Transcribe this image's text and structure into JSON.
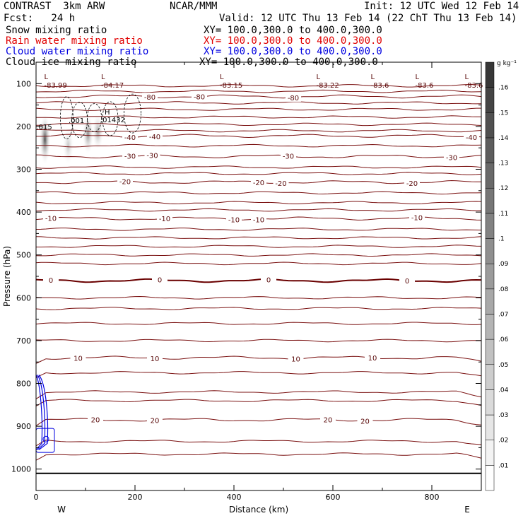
{
  "header": {
    "title": "CONTRAST  3km ARW",
    "org": "NCAR/MMM",
    "init": "Init: 12 UTC Wed 12 Feb 14",
    "fcst": "Fcst:   24 h",
    "valid": "Valid: 12 UTC Thu 13 Feb 14 (22 ChT Thu 13 Feb 14)",
    "fields": [
      {
        "name": "Snow mixing ratio",
        "xy": "XY= 100.0,300.0 to 400.0,300.0",
        "color": "#000000"
      },
      {
        "name": "Rain water mixing ratio",
        "xy": "XY= 100.0,300.0 to 400.0,300.0",
        "color": "#e00000"
      },
      {
        "name": "Cloud water mixing ratio",
        "xy": "XY= 100.0,300.0 to 400.0,300.0",
        "color": "#0000e0"
      },
      {
        "name": "Cloud ice mixing ratio",
        "xy": "XY= 100.0,300.0 to 400.0,300.0",
        "color": "#000000"
      }
    ]
  },
  "chart_data": {
    "type": "contour",
    "xlabel": "Distance (km)",
    "ylabel": "Pressure (hPa)",
    "xlim": [
      0,
      900
    ],
    "ylim": [
      1050,
      50
    ],
    "xticks": [
      0,
      200,
      400,
      600,
      800
    ],
    "yticks": [
      100,
      200,
      300,
      400,
      500,
      600,
      700,
      800,
      900,
      1000
    ],
    "x_ends": {
      "left": "W",
      "right": "E"
    },
    "temperature_contours": [
      {
        "label": "-80",
        "base_p": 130,
        "label_x": [
          230,
          330,
          520
        ]
      },
      {
        "label": "-40",
        "base_p": 222,
        "label_x": [
          190,
          240,
          880
        ]
      },
      {
        "label": "-30",
        "base_p": 270,
        "label_x": [
          190,
          235,
          510,
          840
        ]
      },
      {
        "label": "-20",
        "base_p": 330,
        "label_x": [
          180,
          450,
          495,
          760
        ]
      },
      {
        "label": "-10",
        "base_p": 415,
        "label_x": [
          30,
          260,
          400,
          450,
          770
        ]
      },
      {
        "label": "0",
        "base_p": 560,
        "label_x": [
          30,
          250,
          470,
          750
        ]
      },
      {
        "label": "10",
        "base_p": 740,
        "label_x": [
          85,
          240,
          525,
          680
        ]
      },
      {
        "label": "20",
        "base_p": 885,
        "label_x": [
          120,
          240,
          590,
          665
        ]
      }
    ],
    "low_markers": [
      {
        "x": 25,
        "value": "-83.99"
      },
      {
        "x": 140,
        "value": "-84.17"
      },
      {
        "x": 380,
        "value": "-83.15"
      },
      {
        "x": 575,
        "value": "-83.22"
      },
      {
        "x": 685,
        "value": "-83.6"
      },
      {
        "x": 775,
        "value": "-83.6"
      },
      {
        "x": 875,
        "value": "-83.6"
      }
    ],
    "high_marker": {
      "x": 130,
      "p": 195,
      "label": "H",
      "value": ".01432"
    },
    "ice_labels": [
      {
        "x": 15,
        "p": 207,
        "value": ".015"
      },
      {
        "x": 80,
        "p": 192,
        "value": ".001"
      }
    ],
    "snow_cells": [
      {
        "x": 18,
        "p_top": 170,
        "p_bot": 290,
        "intensity": 0.15
      },
      {
        "x": 65,
        "p_top": 200,
        "p_bot": 290,
        "intensity": 0.05
      },
      {
        "x": 105,
        "p_top": 170,
        "p_bot": 265,
        "intensity": 0.1
      },
      {
        "x": 125,
        "p_top": 170,
        "p_bot": 255,
        "intensity": 0.08
      }
    ],
    "colorbar": {
      "units": "g kg⁻¹",
      "levels": [
        ".01",
        ".02",
        ".03",
        ".04",
        ".05",
        ".06",
        ".07",
        ".08",
        ".09",
        ".1",
        ".11",
        ".12",
        ".13",
        ".14",
        ".15",
        ".16"
      ]
    }
  }
}
